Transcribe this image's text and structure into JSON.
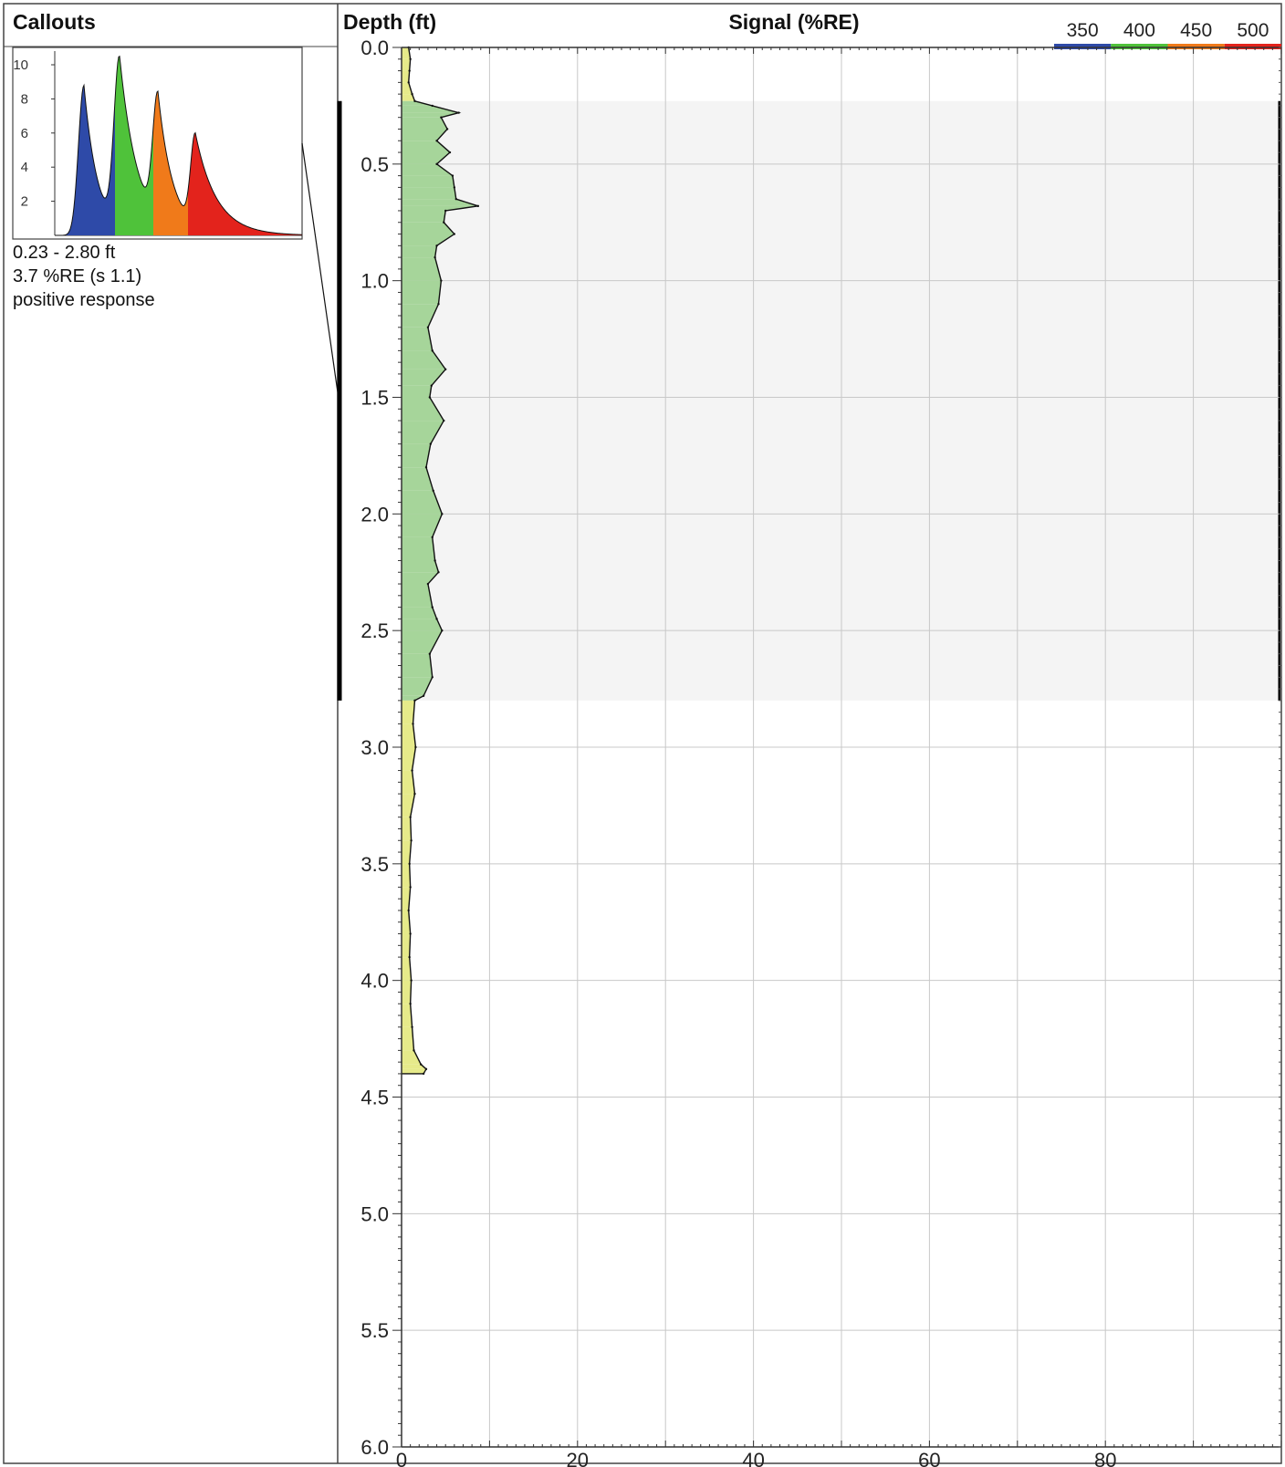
{
  "panels": {
    "callouts_title": "Callouts",
    "depth_title": "Depth (ft)",
    "signal_title": "Signal (%RE)"
  },
  "callout": {
    "range": "0.23 - 2.80 ft",
    "value": "3.7 %RE (s 1.1)",
    "response": "positive response",
    "yticks": [
      "10",
      "8",
      "6",
      "4",
      "2"
    ],
    "waveform_colors": [
      "#2e4aa8",
      "#4fc23a",
      "#f07a1a",
      "#e3231c"
    ]
  },
  "legend": {
    "labels": [
      "350",
      "400",
      "450",
      "500"
    ],
    "colors": [
      "#2e4aa8",
      "#4fc23a",
      "#f07a1a",
      "#e3231c"
    ]
  },
  "chart_data": {
    "type": "area",
    "title": "Signal (%RE)",
    "ylabel": "Depth (ft)",
    "xlim": [
      0,
      100
    ],
    "ylim": [
      6.0,
      0.0
    ],
    "xticks": [
      0,
      20,
      40,
      60,
      80
    ],
    "yticks": [
      0.0,
      0.5,
      1.0,
      1.5,
      2.0,
      2.5,
      3.0,
      3.5,
      4.0,
      4.5,
      5.0,
      5.5,
      6.0
    ],
    "ytick_labels": [
      "0.0",
      "0.5",
      "1.0",
      "1.5",
      "2.0",
      "2.5",
      "3.0",
      "3.5",
      "4.0",
      "4.5",
      "5.0",
      "5.5",
      "6.0"
    ],
    "highlight_range": [
      0.23,
      2.8
    ],
    "fill_colors": {
      "positive": "#a6d59a",
      "background": "#e6ea8a",
      "highlight": "#f4f4f4"
    },
    "series": [
      {
        "depth": [
          0.0,
          0.05,
          0.1,
          0.15,
          0.2,
          0.23,
          0.25,
          0.28,
          0.3,
          0.35,
          0.4,
          0.45,
          0.5,
          0.55,
          0.6,
          0.65,
          0.68,
          0.7,
          0.75,
          0.8,
          0.85,
          0.9,
          1.0,
          1.1,
          1.2,
          1.3,
          1.38,
          1.45,
          1.5,
          1.6,
          1.7,
          1.8,
          1.9,
          2.0,
          2.1,
          2.2,
          2.25,
          2.3,
          2.4,
          2.45,
          2.5,
          2.6,
          2.7,
          2.78,
          2.8,
          2.9,
          3.0,
          3.1,
          3.2,
          3.3,
          3.4,
          3.5,
          3.6,
          3.7,
          3.8,
          3.9,
          4.0,
          4.1,
          4.2,
          4.3,
          4.36,
          4.38,
          4.4
        ],
        "signal": [
          0.8,
          1.0,
          0.9,
          0.8,
          1.2,
          1.5,
          3.5,
          6.5,
          4.5,
          5.2,
          4.0,
          5.5,
          4.0,
          5.8,
          6.0,
          6.2,
          8.7,
          5.0,
          4.8,
          6.0,
          4.0,
          3.8,
          4.5,
          4.2,
          3.0,
          3.5,
          5.0,
          3.4,
          3.2,
          4.8,
          3.3,
          2.8,
          3.6,
          4.6,
          3.5,
          3.8,
          4.2,
          3.0,
          3.5,
          4.0,
          4.6,
          3.2,
          3.5,
          2.5,
          1.5,
          1.3,
          1.6,
          1.2,
          1.5,
          1.0,
          1.1,
          0.9,
          1.0,
          0.8,
          1.0,
          0.9,
          1.1,
          1.0,
          1.2,
          1.4,
          2.2,
          2.8,
          2.5
        ]
      }
    ]
  }
}
